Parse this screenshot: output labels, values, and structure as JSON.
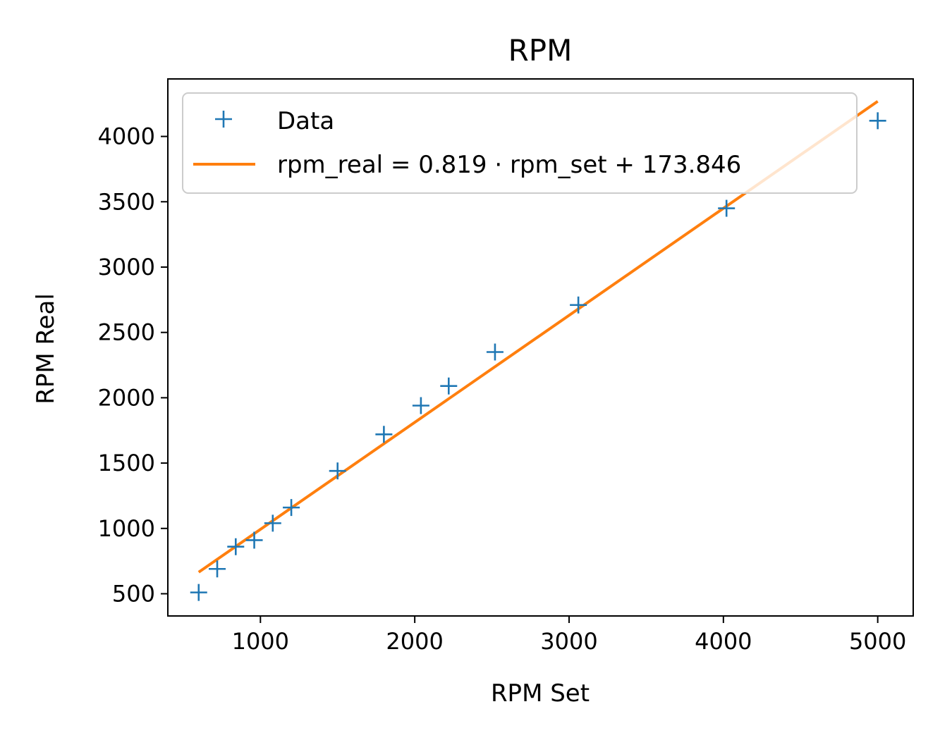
{
  "chart_data": {
    "type": "scatter",
    "title": "RPM",
    "xlabel": "RPM Set",
    "ylabel": "RPM Real",
    "xlim": [
      400,
      5230
    ],
    "ylim": [
      330,
      4440
    ],
    "xticks": [
      1000,
      2000,
      3000,
      4000,
      5000
    ],
    "xtick_labels": [
      "1000",
      "2000",
      "3000",
      "4000",
      "5000"
    ],
    "yticks": [
      500,
      1000,
      1500,
      2000,
      2500,
      3000,
      3500,
      4000
    ],
    "ytick_labels": [
      "500",
      "1000",
      "1500",
      "2000",
      "2500",
      "3000",
      "3500",
      "4000"
    ],
    "grid": false,
    "legend": {
      "placement": "top-left"
    },
    "series": [
      {
        "name": "Data",
        "type": "scatter",
        "marker": "plus",
        "color": "#1f77b4",
        "x": [
          600,
          720,
          840,
          960,
          1080,
          1200,
          1500,
          1800,
          2040,
          2220,
          2520,
          3060,
          4020,
          5000
        ],
        "y": [
          510,
          690,
          860,
          910,
          1040,
          1160,
          1440,
          1720,
          1940,
          2090,
          2350,
          2710,
          3450,
          4120
        ]
      },
      {
        "name": "rpm_real = 0.819 · rpm_set + 173.846",
        "type": "line",
        "color": "#ff7f0e",
        "slope": 0.819,
        "intercept": 173.846,
        "x_range": [
          600,
          5000
        ]
      }
    ]
  }
}
